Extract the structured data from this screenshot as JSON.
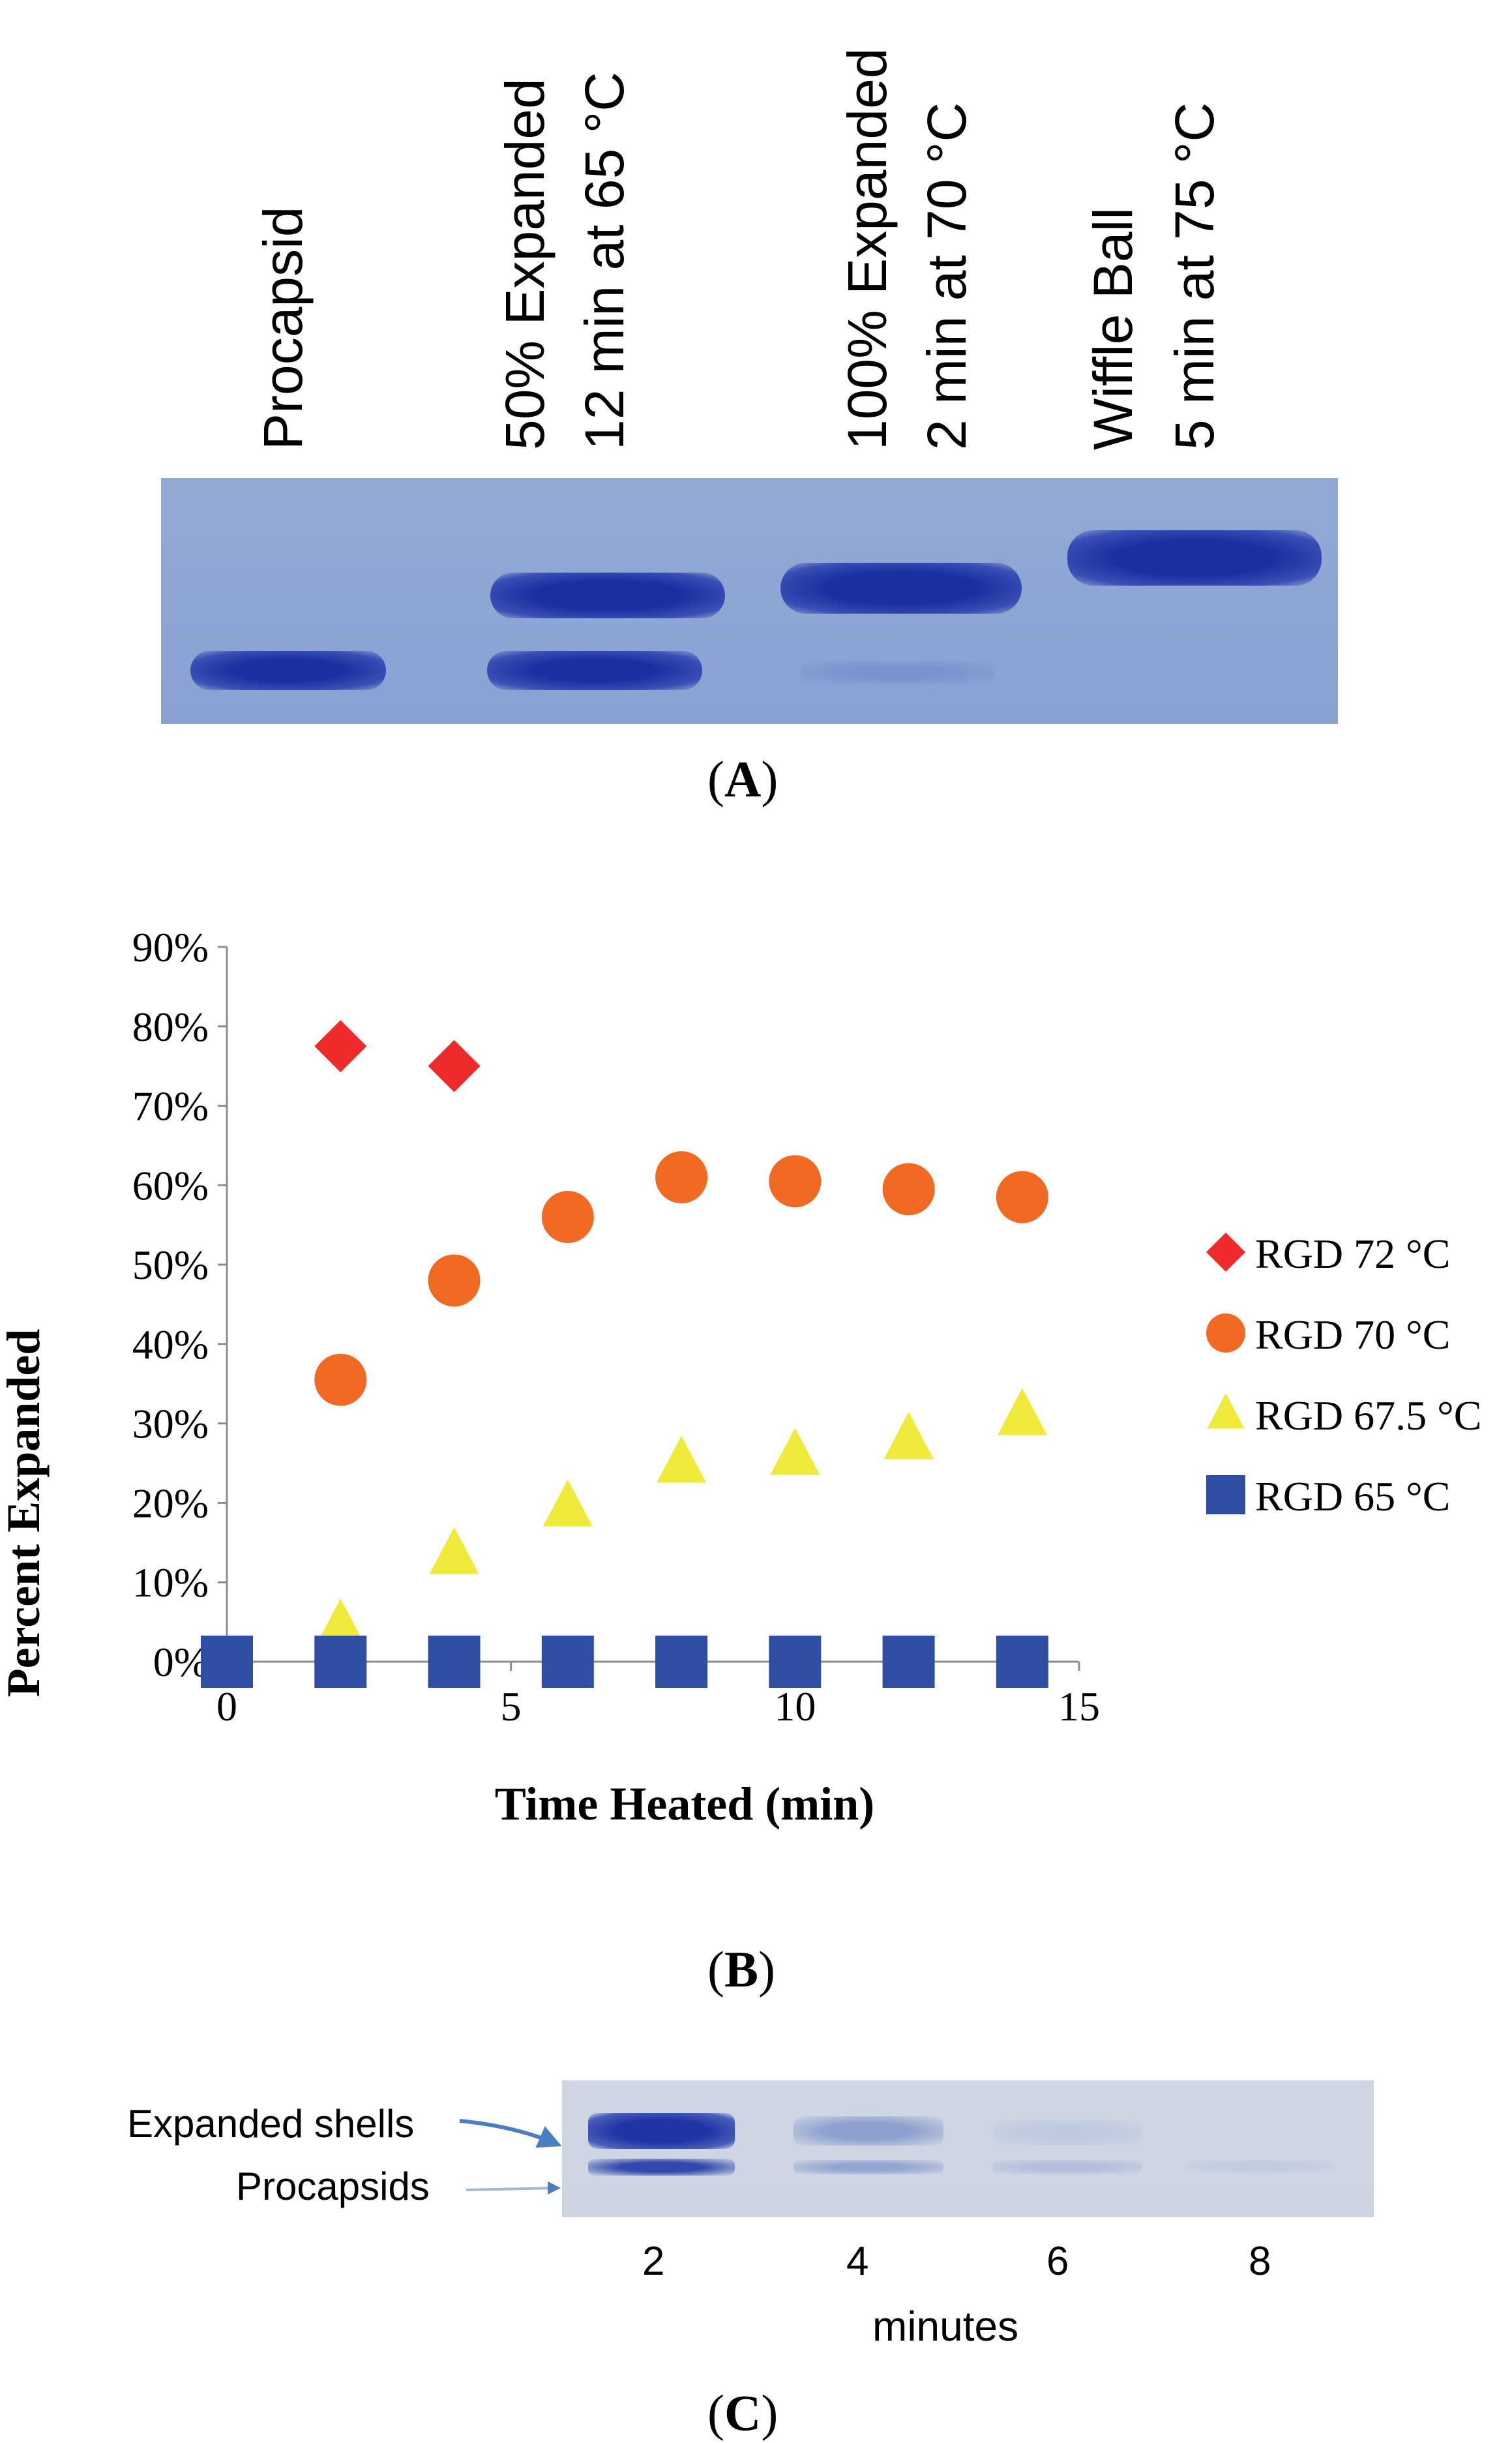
{
  "panel_a": {
    "letter": "(A)",
    "lanes": [
      {
        "line1": "Procapsid",
        "line2": ""
      },
      {
        "line1": "50% Expanded",
        "line2": "12 min at 65 °C"
      },
      {
        "line1": "100% Expanded",
        "line2": "2 min at 70 °C"
      },
      {
        "line1": "Wiffle Ball",
        "line2": "5 min at 75 °C"
      }
    ],
    "colors": {
      "gel_bg": "#8fa7d4",
      "band": "#2438a8"
    }
  },
  "panel_b": {
    "letter": "(B)",
    "legend": [
      {
        "label": "RGD 72 °C",
        "marker": "diamond",
        "color": "#ee2a2a"
      },
      {
        "label": "RGD 70 °C",
        "marker": "circle",
        "color": "#f06a23"
      },
      {
        "label": "RGD 67.5 °C",
        "marker": "triangle",
        "color": "#f0ea3a"
      },
      {
        "label": "RGD 65 °C",
        "marker": "square",
        "color": "#2f4ea3"
      }
    ]
  },
  "chart_data": {
    "type": "scatter",
    "title": "",
    "xlabel": "Time Heated (min)",
    "ylabel": "Percent Expanded",
    "xlim": [
      0,
      15
    ],
    "ylim": [
      0,
      90
    ],
    "xticks": [
      0,
      5,
      10,
      15
    ],
    "yticks": [
      0,
      10,
      20,
      30,
      40,
      50,
      60,
      70,
      80,
      90
    ],
    "ytick_labels": [
      "0%",
      "10%",
      "20%",
      "30%",
      "40%",
      "50%",
      "60%",
      "70%",
      "80%",
      "90%"
    ],
    "grid": false,
    "legend_position": "right",
    "series": [
      {
        "name": "RGD 72 °C",
        "marker": "diamond",
        "color": "#ee2a2a",
        "x": [
          2,
          4
        ],
        "y": [
          77.5,
          75
        ]
      },
      {
        "name": "RGD 70 °C",
        "marker": "circle",
        "color": "#f06a23",
        "x": [
          2,
          4,
          6,
          8,
          10,
          12,
          14
        ],
        "y": [
          35.5,
          48,
          56,
          61,
          60.5,
          59.5,
          58.5
        ]
      },
      {
        "name": "RGD 67.5 °C",
        "marker": "triangle",
        "color": "#f0ea3a",
        "x": [
          2,
          4,
          6,
          8,
          10,
          12,
          14
        ],
        "y": [
          4.5,
          13.5,
          19.5,
          25,
          26,
          28,
          31
        ]
      },
      {
        "name": "RGD 65 °C",
        "marker": "square",
        "color": "#2f4ea3",
        "x": [
          0,
          2,
          4,
          6,
          8,
          10,
          12,
          14
        ],
        "y": [
          0,
          0,
          0,
          0,
          0,
          0,
          0,
          0
        ]
      }
    ]
  },
  "panel_c": {
    "letter": "(C)",
    "label_expanded": "Expanded shells",
    "label_procapsids": "Procapsids",
    "lane_times": [
      "2",
      "4",
      "6",
      "8"
    ],
    "axis_label": "minutes",
    "colors": {
      "arrow": "#4a7fc1",
      "gel_bg": "#cdd5e3"
    }
  }
}
